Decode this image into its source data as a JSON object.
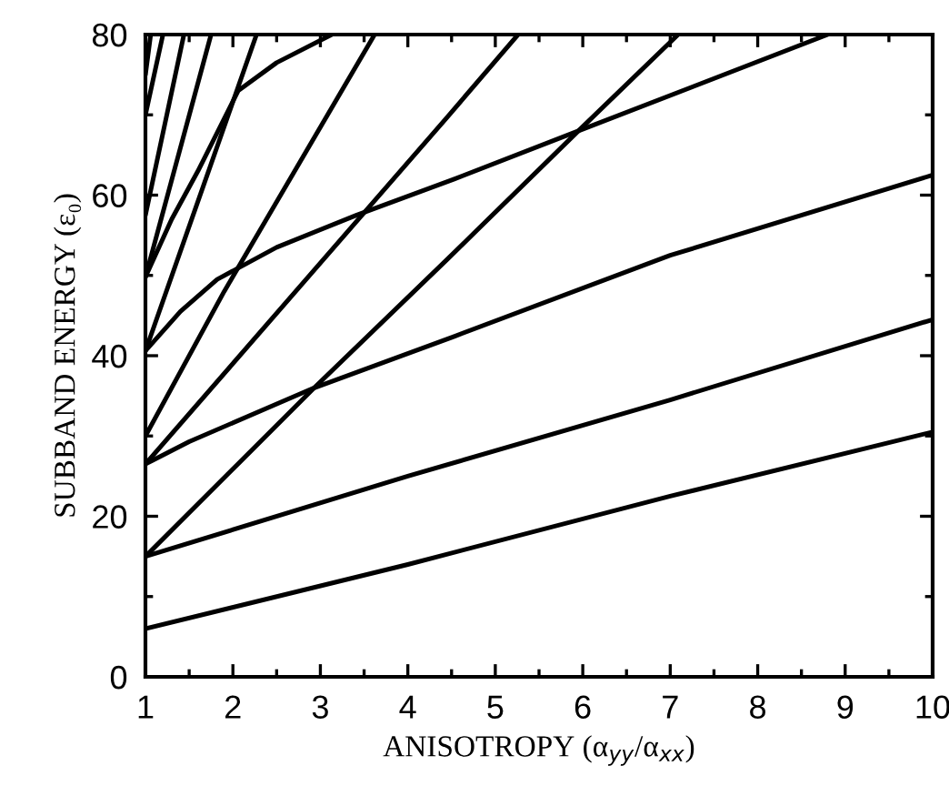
{
  "chart_data": {
    "type": "line",
    "xlabel": "ANISOTROPY (α$_{yy}$/α$_{xx}$)",
    "ylabel": "SUBBAND ENERGY (ε₀)",
    "xlim": [
      1,
      10
    ],
    "ylim": [
      0,
      80
    ],
    "xticks": [
      1,
      2,
      3,
      4,
      5,
      6,
      7,
      8,
      9,
      10
    ],
    "yticks": [
      0,
      20,
      40,
      60,
      80
    ],
    "grid": false,
    "legend": false,
    "marker": "none",
    "line_style": "solid",
    "series": [
      {
        "color": "#000000",
        "x": [
          1,
          4,
          7,
          10
        ],
        "values": [
          6,
          14,
          22.5,
          30.5
        ]
      },
      {
        "color": "#000000",
        "x": [
          1,
          4,
          7,
          10
        ],
        "values": [
          15,
          25,
          34.5,
          44.5
        ]
      },
      {
        "color": "#000000",
        "x": [
          1,
          2.93,
          4.45,
          5.95,
          7.09
        ],
        "values": [
          15,
          36,
          52,
          68,
          80
        ]
      },
      {
        "color": "#000000",
        "x": [
          1,
          1.5,
          2.93,
          4.53,
          7,
          10
        ],
        "values": [
          26.5,
          29.3,
          36,
          42.4,
          52.5,
          62.5
        ]
      },
      {
        "color": "#000000",
        "x": [
          1,
          2.9,
          4.45,
          5.26
        ],
        "values": [
          26.5,
          50.3,
          69.7,
          80
        ]
      },
      {
        "color": "#000000",
        "x": [
          1,
          1.9,
          3.62
        ],
        "values": [
          30,
          48,
          80
        ]
      },
      {
        "color": "#000000",
        "x": [
          1,
          1.4,
          1.82,
          2.5,
          3.41,
          4.53,
          5.95,
          8.8
        ],
        "values": [
          40.6,
          45.5,
          49.5,
          53.5,
          57.5,
          62,
          68,
          80
        ]
      },
      {
        "color": "#000000",
        "x": [
          1,
          1.3,
          1.6,
          2.06,
          2.5,
          3.13
        ],
        "values": [
          49.8,
          57,
          63,
          73,
          76.5,
          80
        ]
      },
      {
        "color": "#000000",
        "x": [
          1,
          2.27
        ],
        "values": [
          40.6,
          80
        ]
      },
      {
        "color": "#000000",
        "x": [
          1,
          1.75
        ],
        "values": [
          49.8,
          80
        ]
      },
      {
        "color": "#000000",
        "x": [
          1,
          1.44
        ],
        "values": [
          57.5,
          80
        ]
      },
      {
        "color": "#000000",
        "x": [
          1,
          1.2
        ],
        "values": [
          70,
          80
        ]
      },
      {
        "color": "#000000",
        "x": [
          1,
          1.06
        ],
        "values": [
          75,
          80
        ]
      }
    ]
  }
}
